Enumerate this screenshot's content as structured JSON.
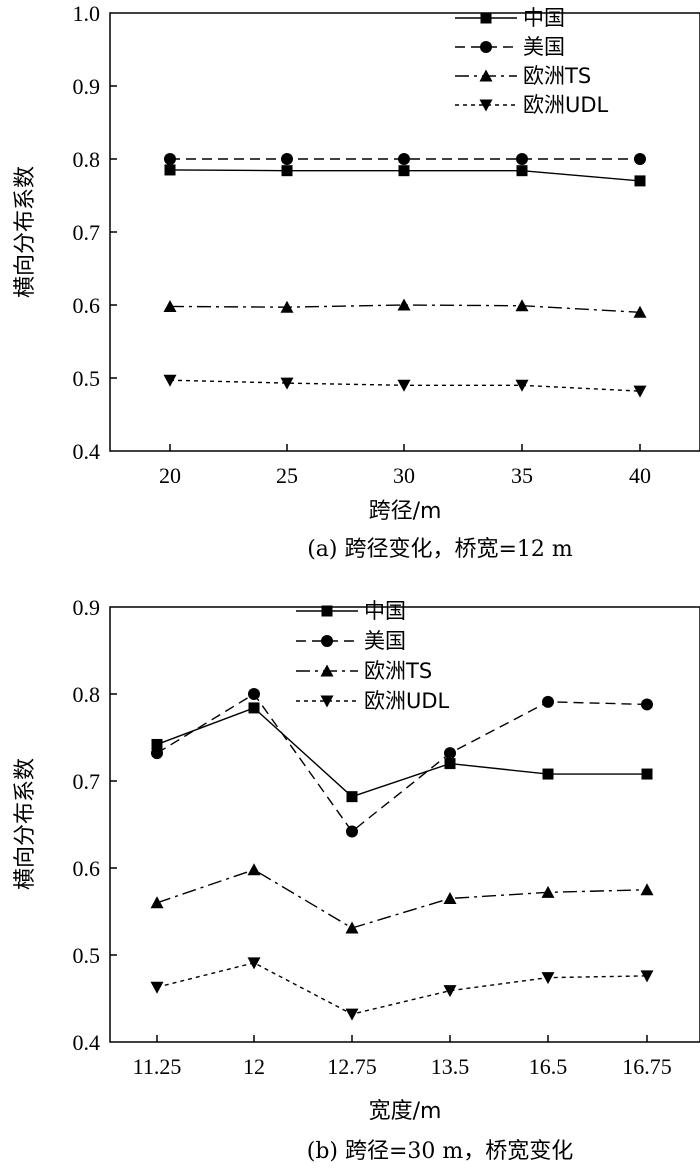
{
  "chart_data": [
    {
      "type": "line",
      "caption": "(a) 跨径变化，桥宽=12 m",
      "xlabel": "跨径/m",
      "ylabel": "横向分布系数",
      "categories": [
        "20",
        "25",
        "30",
        "35",
        "40"
      ],
      "ylim": [
        0.4,
        1.0
      ],
      "yticks": [
        "0.4",
        "0.5",
        "0.6",
        "0.7",
        "0.8",
        "0.9",
        "1.0"
      ],
      "legend_position": "top-right",
      "grid": false,
      "series": [
        {
          "name": "中国",
          "marker": "square",
          "dash": "solid",
          "values": [
            0.785,
            0.784,
            0.784,
            0.784,
            0.77
          ]
        },
        {
          "name": "美国",
          "marker": "circle",
          "dash": "dashed",
          "values": [
            0.8,
            0.8,
            0.8,
            0.8,
            0.8
          ]
        },
        {
          "name": "欧洲TS",
          "marker": "triangle-up",
          "dash": "dashdot",
          "values": [
            0.598,
            0.597,
            0.6,
            0.599,
            0.59
          ]
        },
        {
          "name": "欧洲UDL",
          "marker": "triangle-down",
          "dash": "dotted",
          "values": [
            0.497,
            0.493,
            0.49,
            0.49,
            0.482
          ]
        }
      ]
    },
    {
      "type": "line",
      "caption": "(b) 跨径=30 m，桥宽变化",
      "xlabel": "宽度/m",
      "ylabel": "横向分布系数",
      "categories": [
        "11.25",
        "12",
        "12.75",
        "13.5",
        "16.5",
        "16.75"
      ],
      "ylim": [
        0.4,
        0.9
      ],
      "yticks": [
        "0.4",
        "0.5",
        "0.6",
        "0.7",
        "0.8",
        "0.9"
      ],
      "legend_position": "top-left",
      "grid": false,
      "series": [
        {
          "name": "中国",
          "marker": "square",
          "dash": "solid",
          "values": [
            0.742,
            0.784,
            0.682,
            0.72,
            0.708,
            0.708
          ]
        },
        {
          "name": "美国",
          "marker": "circle",
          "dash": "dashed",
          "values": [
            0.732,
            0.8,
            0.642,
            0.732,
            0.791,
            0.788
          ]
        },
        {
          "name": "欧洲TS",
          "marker": "triangle-up",
          "dash": "dashdot",
          "values": [
            0.56,
            0.598,
            0.531,
            0.565,
            0.572,
            0.575
          ]
        },
        {
          "name": "欧洲UDL",
          "marker": "triangle-down",
          "dash": "dotted",
          "values": [
            0.463,
            0.491,
            0.432,
            0.459,
            0.474,
            0.476
          ]
        }
      ]
    }
  ]
}
